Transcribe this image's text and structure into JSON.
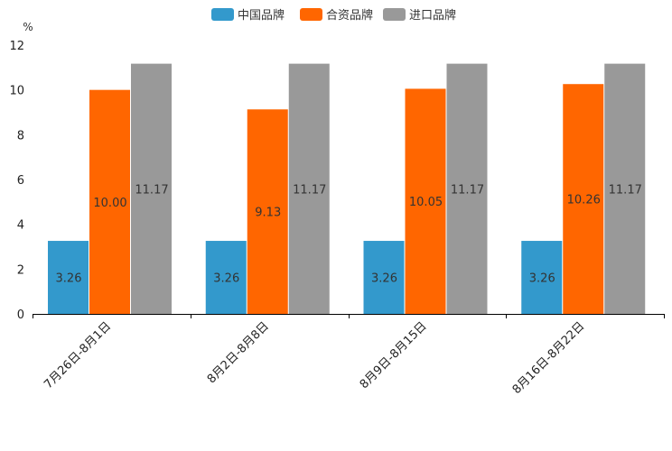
{
  "chart_data": {
    "type": "bar",
    "title": "",
    "ylabel": "%",
    "xlabel": "",
    "ylim": [
      0,
      12
    ],
    "yticks": [
      0,
      2,
      4,
      6,
      8,
      10,
      12
    ],
    "grid": false,
    "legend_position": "top-center",
    "categories": [
      "7月26日-8月1日",
      "8月2日-8月8日",
      "8月9日-8月15日",
      "8月16日-8月22日"
    ],
    "series": [
      {
        "name": "中国品牌",
        "color": "#3399cc",
        "values": [
          3.26,
          3.26,
          3.26,
          3.26
        ],
        "labels": [
          "3.26",
          "3.26",
          "3.26",
          "3.26"
        ]
      },
      {
        "name": "合资品牌",
        "color": "#ff6600",
        "values": [
          10.0,
          9.13,
          10.05,
          10.26
        ],
        "labels": [
          "10.00",
          "9.13",
          "10.05",
          "10.26"
        ]
      },
      {
        "name": "进口品牌",
        "color": "#999999",
        "values": [
          11.17,
          11.17,
          11.17,
          11.17
        ],
        "labels": [
          "11.17",
          "11.17",
          "11.17",
          "11.17"
        ]
      }
    ]
  }
}
